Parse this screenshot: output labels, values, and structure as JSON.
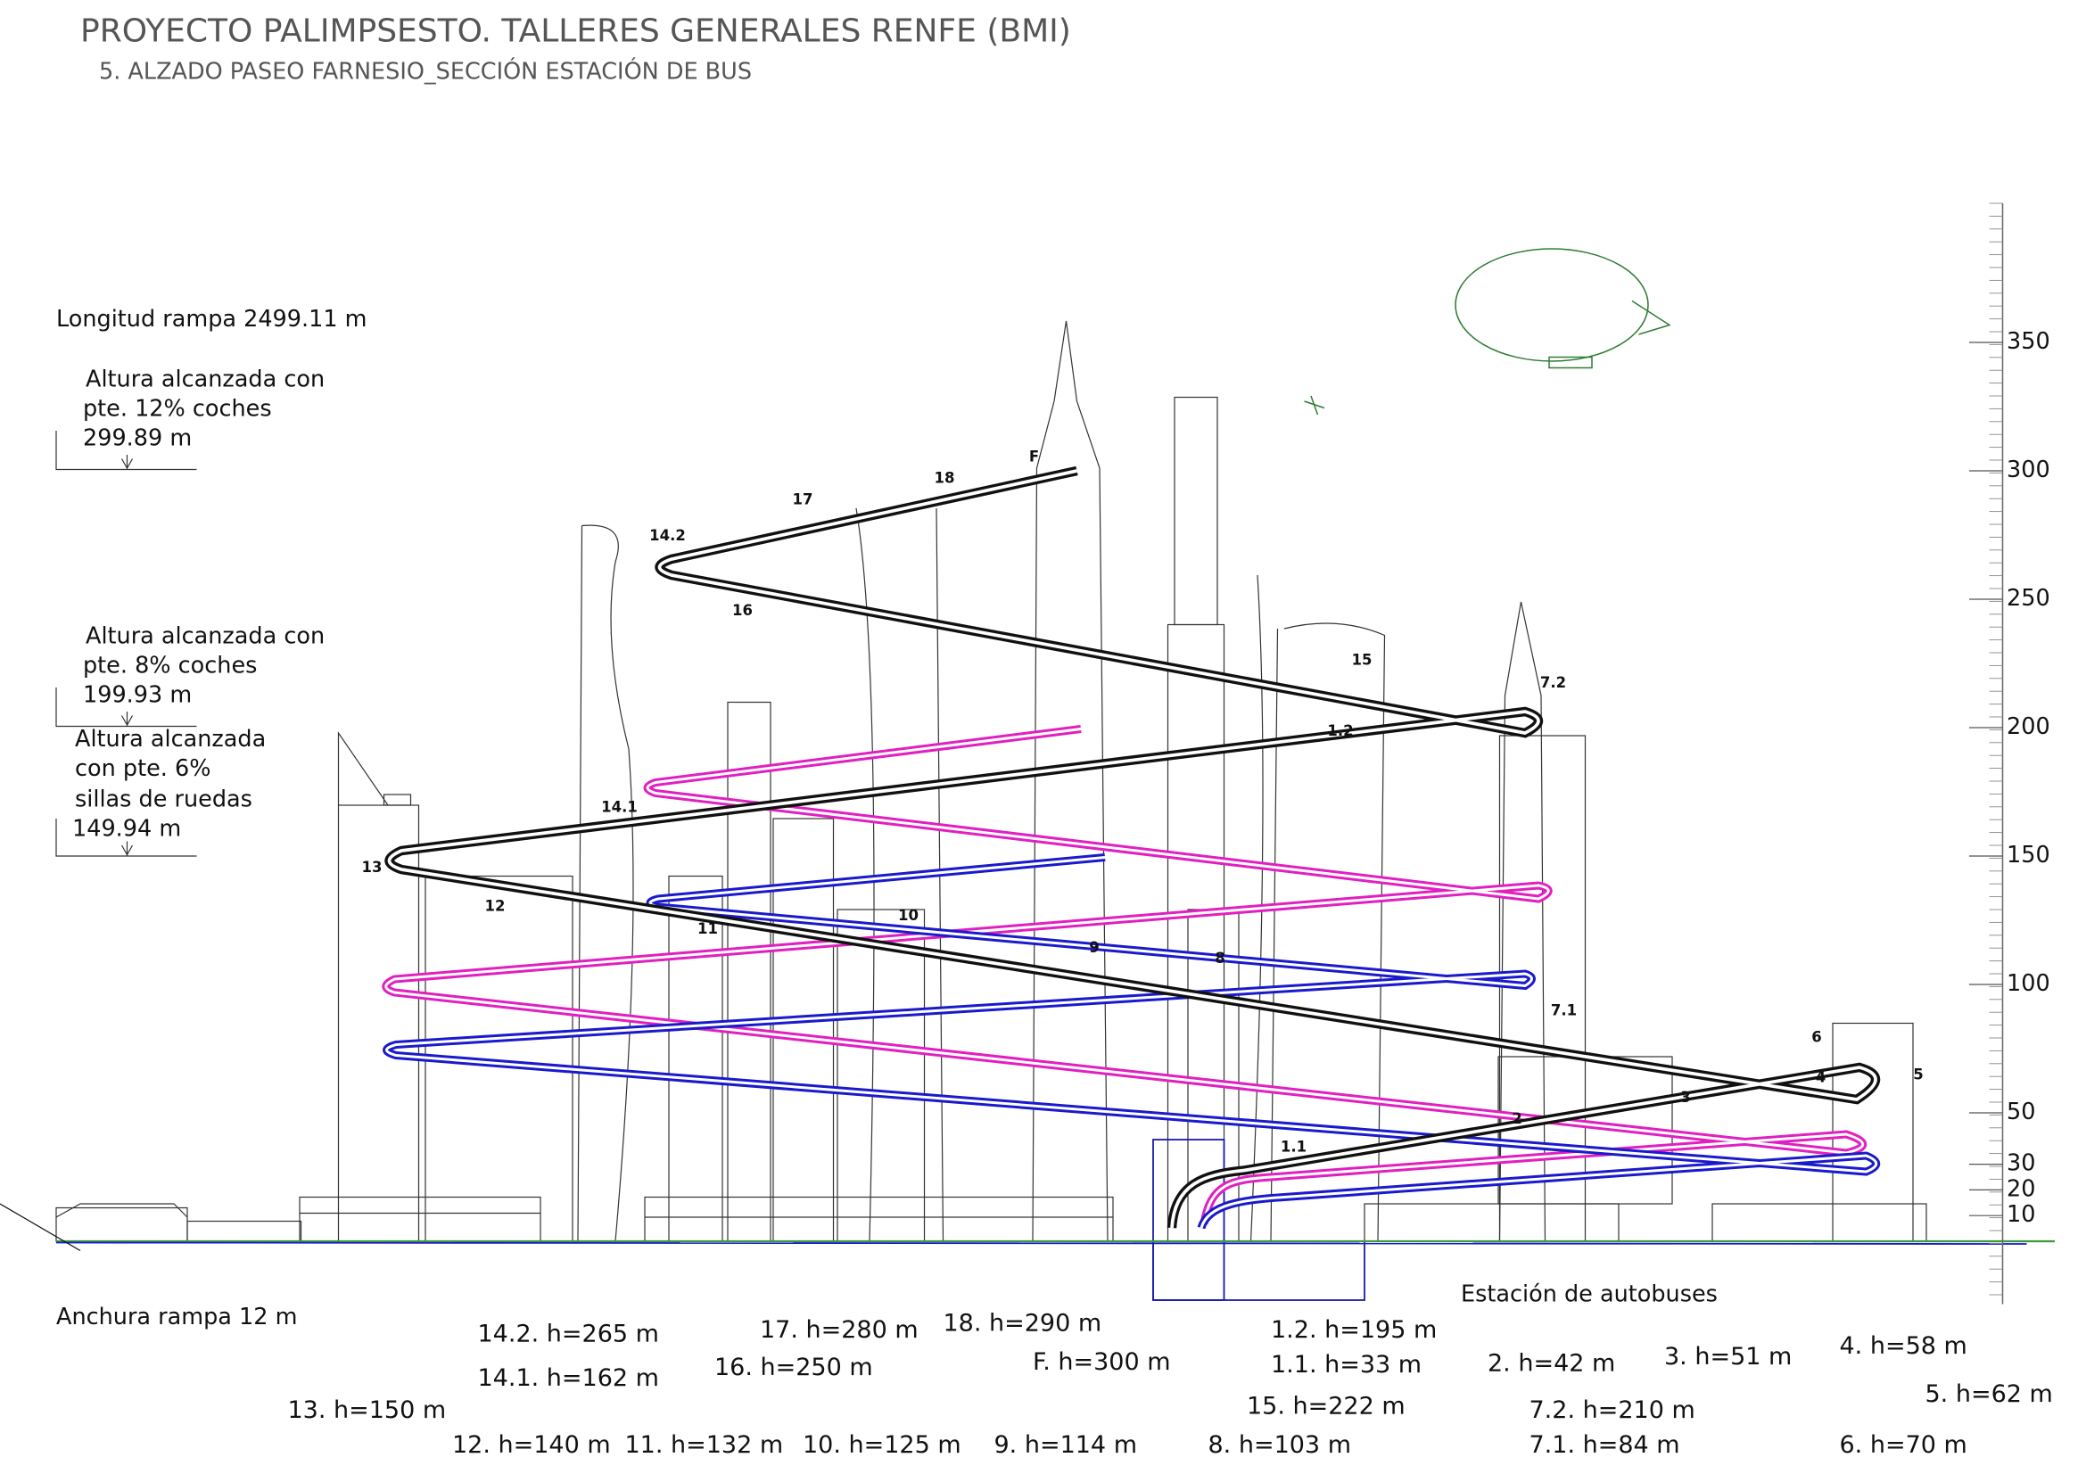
{
  "header": {
    "title": "PROYECTO PALIMPSESTO. TALLERES GENERALES RENFE (BMI)",
    "subtitle": "5. ALZADO PASEO FARNESIO_SECCIÓN ESTACIÓN DE BUS"
  },
  "ramp": {
    "length": "Longitud rampa 2499.11 m",
    "width": "Anchura rampa 12 m"
  },
  "levels": [
    {
      "lines": [
        "Altura alcanzada con",
        "pte. 12% coches",
        "299.89 m"
      ]
    },
    {
      "lines": [
        "Altura alcanzada con",
        "pte. 8% coches",
        "199.93 m"
      ]
    },
    {
      "lines": [
        "Altura alcanzada",
        "con pte. 6%",
        "sillas de ruedas",
        "149.94 m"
      ]
    }
  ],
  "scale": {
    "ticks": [
      350,
      300,
      250,
      200,
      150,
      100,
      50,
      30,
      20,
      10
    ]
  },
  "station": "Estación de autobuses",
  "nodes": [
    "14.2",
    "17",
    "18",
    "F",
    "16",
    "15",
    "7.2",
    "1.2",
    "14.1",
    "13",
    "12",
    "11",
    "10",
    "9",
    "8",
    "7.1",
    "6",
    "4",
    "5",
    "3",
    "2",
    "1.1"
  ],
  "heights": [
    "14.2. h=265 m",
    "17. h=280 m",
    "18. h=290 m",
    "1.2. h=195 m",
    "14.1. h=162 m",
    "16. h=250 m",
    "F. h=300 m",
    "1.1. h=33 m",
    "2. h=42 m",
    "3. h=51 m",
    "4. h=58 m",
    "13. h=150 m",
    "15. h=222 m",
    "7.2. h=210 m",
    "5. h=62 m",
    "12. h=140 m",
    "11. h=132 m",
    "10. h=125 m",
    "9. h=114 m",
    "8. h=103 m",
    "7.1. h=84 m",
    "6. h=70 m"
  ]
}
